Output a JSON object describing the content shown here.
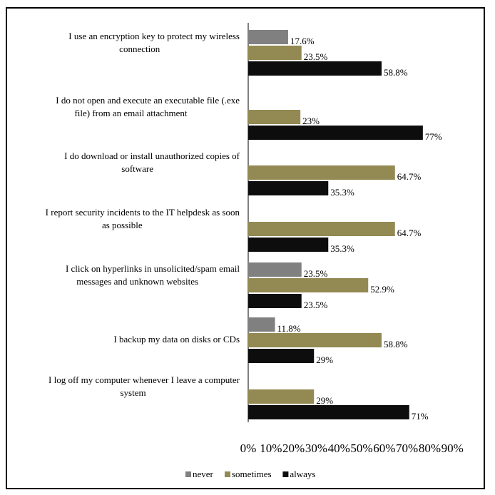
{
  "chart_data": {
    "type": "bar",
    "orientation": "horizontal",
    "categories": [
      [
        "I use an encryption key to protect my wireless",
        "connection"
      ],
      [
        "I do not open and execute an executable file (.exe",
        "file) from an email attachment"
      ],
      [
        "I do download or install unauthorized copies of",
        "software"
      ],
      [
        "I report security incidents to the IT helpdesk as soon",
        "as possible"
      ],
      [
        "I click on hyperlinks in unsolicited/spam email",
        "messages and unknown websites"
      ],
      [
        "I backup my data on disks or CDs"
      ],
      [
        "I log off my computer whenever I leave a computer",
        "system"
      ]
    ],
    "series": [
      {
        "name": "never",
        "color": "#808080",
        "values": [
          17.6,
          null,
          null,
          null,
          23.5,
          11.8,
          null
        ],
        "labels": [
          "17.6%",
          "",
          "",
          "",
          "23.5%",
          "11.8%",
          ""
        ]
      },
      {
        "name": "sometimes",
        "color": "#938953",
        "values": [
          23.5,
          23,
          64.7,
          64.7,
          52.9,
          58.8,
          29
        ],
        "labels": [
          "23.5%",
          "23%",
          "64.7%",
          "64.7%",
          "52.9%",
          "58.8%",
          "29%"
        ]
      },
      {
        "name": "always",
        "color": "#0d0d0d",
        "values": [
          58.8,
          77,
          35.3,
          35.3,
          23.5,
          29,
          71
        ],
        "labels": [
          "58.8%",
          "77%",
          "35.3%",
          "35.3%",
          "23.5%",
          "29%",
          "71%"
        ]
      }
    ],
    "xlim": [
      0,
      90
    ],
    "xticks": [
      "0%",
      "10%",
      "20%",
      "30%",
      "40%",
      "50%",
      "60%",
      "70%",
      "80%",
      "90%"
    ],
    "legend_position": "bottom",
    "grid": false
  }
}
